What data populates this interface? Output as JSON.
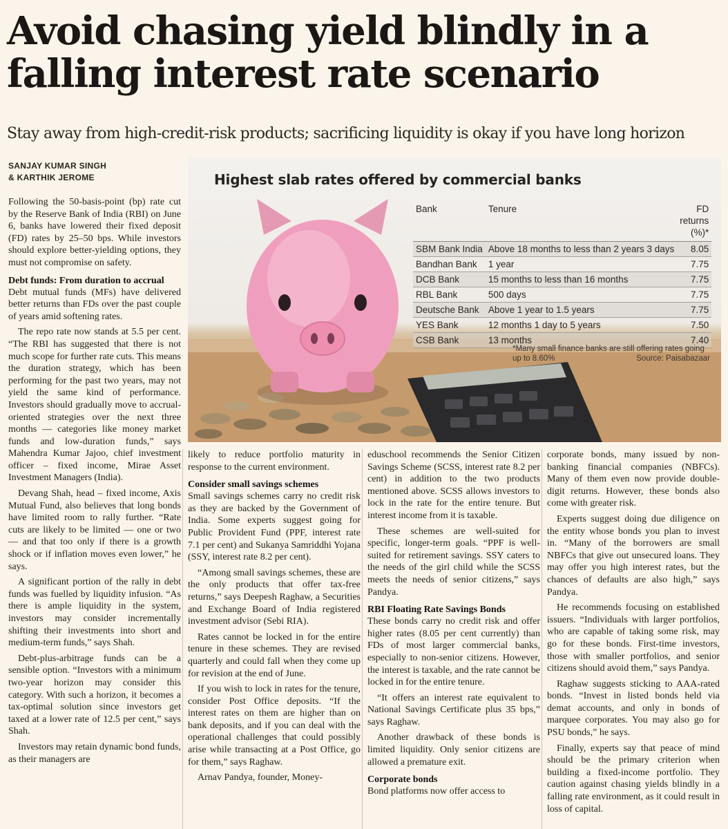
{
  "headline": "Avoid chasing yield blindly in a falling interest rate scenario",
  "dek": "Stay away from high-credit-risk products; sacrificing liquidity is okay if you have long horizon",
  "byline": [
    "SANJAY KUMAR SINGH",
    "& KARTHIK JEROME"
  ],
  "graphic": {
    "title": "Highest slab rates offered by commercial banks",
    "columns": [
      "Bank",
      "Tenure",
      "FD returns (%)*"
    ],
    "rows": [
      [
        "SBM Bank India",
        "Above 18 months to less than 2 years 3 days",
        "8.05"
      ],
      [
        "Bandhan Bank",
        "1 year",
        "7.75"
      ],
      [
        "DCB Bank",
        "15 months to less than 16 months",
        "7.75"
      ],
      [
        "RBL Bank",
        "500 days",
        "7.75"
      ],
      [
        "Deutsche Bank",
        "Above 1 year to 1.5 years",
        "7.75"
      ],
      [
        "YES Bank",
        "12 months 1 day to 5 years",
        "7.50"
      ],
      [
        "CSB Bank",
        "13 months",
        "7.40"
      ]
    ],
    "footnote": "*Many small finance banks are still offering rates going up to 8.60%",
    "source": "Source: Paisabazaar"
  },
  "column1": [
    {
      "type": "p",
      "text": "Following the 50-basis-point (bp) rate cut by the Reserve Bank of India (RBI) on June 6, banks have lowered their fixed deposit (FD) rates by 25–50 bps. While investors should explore better-yielding options, they must not compromise on safety."
    },
    {
      "type": "h",
      "text": "Debt funds: From duration to accrual"
    },
    {
      "type": "p",
      "text": "Debt mutual funds (MFs) have delivered better returns than FDs over the past couple of years amid softening rates."
    },
    {
      "type": "p",
      "text": "The repo rate now stands at 5.5 per cent. “The RBI has suggested that there is not much scope for further rate cuts. This means the duration strategy, which has been performing for the past two years, may not yield the same kind of performance. Investors should gradually move to accrual-oriented strategies over the next three months — categories like money market funds and low-duration funds,” says Mahendra Kumar Jajoo, chief investment officer – fixed income, Mirae Asset Investment Managers (India)."
    },
    {
      "type": "p",
      "text": "Devang Shah, head – fixed income, Axis Mutual Fund, also believes that long bonds have limited room to rally further. “Rate cuts are likely to be limited — one or two — and that too only if there is a growth shock or if inflation moves even lower,” he says."
    },
    {
      "type": "p",
      "text": "A significant portion of the rally in debt funds was fuelled by liquidity infusion. “As there is ample liquidity in the system, investors may consider incrementally shifting their investments into short and medium-term funds,” says Shah."
    },
    {
      "type": "p",
      "text": "Debt-plus-arbitrage funds can be a sensible option. “Investors with a minimum two-year horizon may consider this category. With such a horizon, it becomes a tax-optimal solution since investors get taxed at a lower rate of 12.5 per cent,” says Shah."
    },
    {
      "type": "p",
      "text": "Investors may retain dynamic bond funds, as their managers are"
    }
  ],
  "column2": [
    {
      "type": "p",
      "text": "likely to reduce portfolio maturity in response to the current environment."
    },
    {
      "type": "h",
      "text": "Consider small savings schemes"
    },
    {
      "type": "p",
      "text": "Small savings schemes carry no credit risk as they are backed by the Government of India. Some experts suggest going for Public Provident Fund (PPF, interest rate 7.1 per cent) and Sukanya Samriddhi Yojana (SSY, interest rate 8.2 per cent)."
    },
    {
      "type": "p",
      "text": "“Among small savings schemes, these are the only products that offer tax-free returns,” says Deepesh Raghaw, a Securities and Exchange Board of India registered investment advisor (Sebi RIA)."
    },
    {
      "type": "p",
      "text": "Rates cannot be locked in for the entire tenure in these schemes. They are revised quarterly and could fall when they come up for revision at the end of June."
    },
    {
      "type": "p",
      "text": "If you wish to lock in rates for the tenure, consider Post Office deposits. “If the interest rates on them are higher than on bank deposits, and if you can deal with the operational challenges that could possibly arise while transacting at a Post Office, go for them,” says Raghaw."
    },
    {
      "type": "p",
      "text": "Arnav Pandya, founder, Money-"
    }
  ],
  "column3": [
    {
      "type": "p",
      "text": "eduschool recommends the Senior Citizen Savings Scheme (SCSS, interest rate 8.2 per cent) in addition to the two products mentioned above. SCSS allows investors to lock in the rate for the entire tenure. But interest income from it is taxable."
    },
    {
      "type": "p",
      "text": "These schemes are well-suited for specific, longer-term goals. “PPF is well-suited for retirement savings. SSY caters to the needs of the girl child while the SCSS meets the needs of senior citizens,” says Pandya."
    },
    {
      "type": "h",
      "text": "RBI Floating Rate Savings Bonds"
    },
    {
      "type": "p",
      "text": "These bonds carry no credit risk and offer higher rates (8.05 per cent currently) than FDs of most larger commercial banks, especially to non-senior citizens. However, the interest is taxable, and the rate cannot be locked in for the entire tenure."
    },
    {
      "type": "p",
      "text": "“It offers an interest rate equivalent to National Savings Certificate plus 35 bps,” says Raghaw."
    },
    {
      "type": "p",
      "text": "Another drawback of these bonds is limited liquidity. Only senior citizens are allowed a premature exit."
    },
    {
      "type": "h",
      "text": "Corporate bonds"
    },
    {
      "type": "p",
      "text": "Bond platforms now offer access to"
    }
  ],
  "column4": [
    {
      "type": "p",
      "text": "corporate bonds, many issued by non-banking financial companies (NBFCs). Many of them even now provide double-digit returns. However, these bonds also come with greater risk."
    },
    {
      "type": "p",
      "text": "Experts suggest doing due diligence on the entity whose bonds you plan to invest in. “Many of the borrowers are small NBFCs that give out unsecured loans. They may offer you high interest rates, but the chances of defaults are also high,” says Pandya."
    },
    {
      "type": "p",
      "text": "He recommends focusing on established issuers. “Individuals with larger portfolios, who are capable of taking some risk, may go for these bonds. First-time investors, those with smaller portfolios, and senior citizens should avoid them,” says Pandya."
    },
    {
      "type": "p",
      "text": "Raghaw suggests sticking to AAA-rated bonds. “Invest in listed bonds held via demat accounts, and only in bonds of marquee corporates. You may also go for PSU bonds,” he says."
    },
    {
      "type": "p",
      "text": "Finally, experts say that peace of mind should be the primary criterion when building a fixed-income portfolio. They caution against chasing yields blindly in a falling rate environment, as it could result in loss of capital."
    }
  ]
}
